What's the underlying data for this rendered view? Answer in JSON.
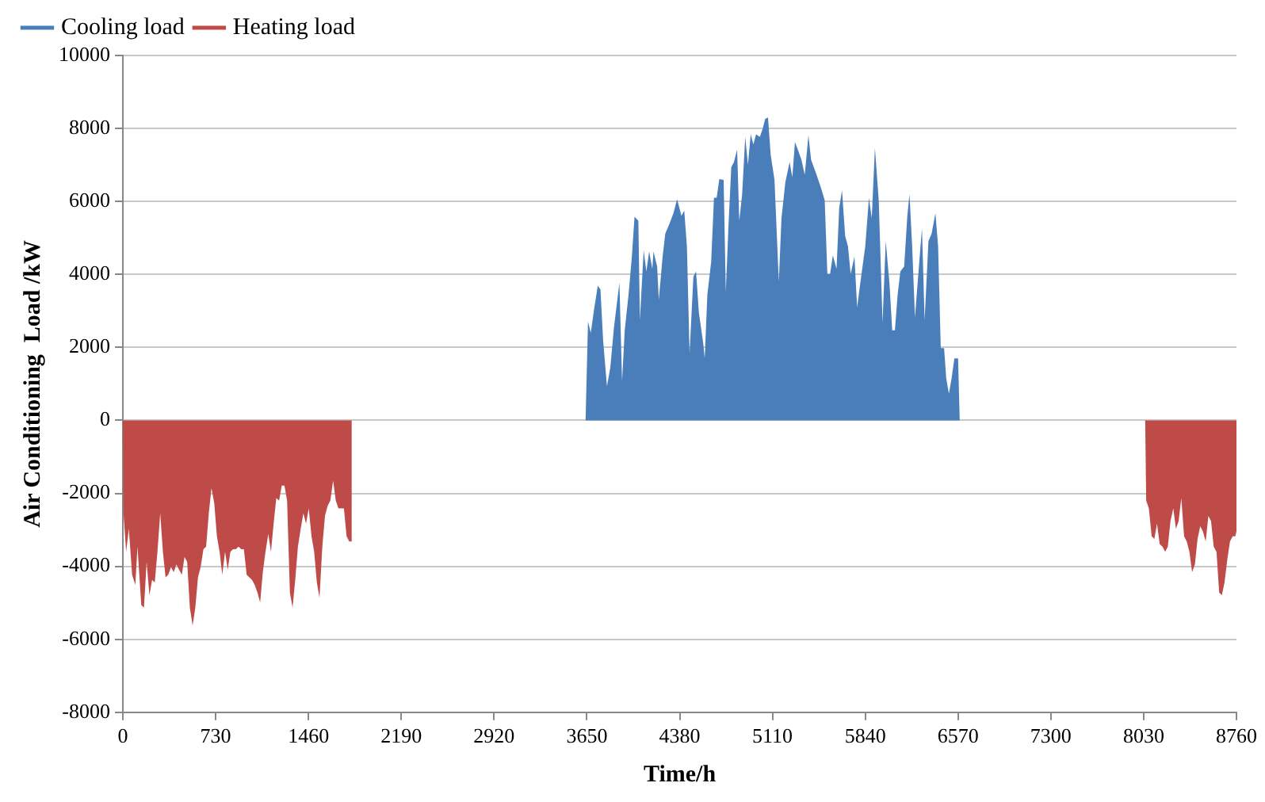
{
  "chart_data": {
    "type": "area",
    "xlabel": "Time/h",
    "ylabel": "Air Conditioning  Load /kW",
    "xlim": [
      0,
      8760
    ],
    "xticks": [
      0,
      730,
      1460,
      2190,
      2920,
      3650,
      4380,
      5110,
      5840,
      6570,
      7300,
      8030,
      8760
    ],
    "ylim": [
      -8000,
      10000
    ],
    "yticks": [
      -8000,
      -6000,
      -4000,
      -2000,
      0,
      2000,
      4000,
      6000,
      8000,
      10000
    ],
    "grid": "y",
    "legend": "top left",
    "marker": "none",
    "series": [
      {
        "name": "Cooling load",
        "color": "#4a7ebb",
        "x": [
          0,
          3640,
          3659,
          3681,
          3706,
          3736,
          3757,
          3778,
          3808,
          3834,
          3863,
          3906,
          3927,
          3948,
          3978,
          4004,
          4025,
          4055,
          4067,
          4097,
          4118,
          4140,
          4165,
          4174,
          4203,
          4216,
          4246,
          4267,
          4301,
          4331,
          4360,
          4394,
          4416,
          4437,
          4458,
          4488,
          4509,
          4531,
          4565,
          4577,
          4598,
          4628,
          4650,
          4671,
          4692,
          4726,
          4743,
          4764,
          4786,
          4807,
          4832,
          4849,
          4871,
          4896,
          4917,
          4939,
          4960,
          4981,
          5011,
          5032,
          5053,
          5075,
          5096,
          5126,
          5160,
          5181,
          5211,
          5245,
          5266,
          5287,
          5317,
          5338,
          5364,
          5393,
          5414,
          5457,
          5491,
          5521,
          5542,
          5563,
          5585,
          5614,
          5635,
          5657,
          5682,
          5704,
          5725,
          5755,
          5776,
          5797,
          5840,
          5869,
          5891,
          5916,
          5946,
          5976,
          6001,
          6031,
          6052,
          6073,
          6095,
          6116,
          6146,
          6171,
          6188,
          6209,
          6231,
          6265,
          6286,
          6307,
          6337,
          6362,
          6392,
          6413,
          6434,
          6460,
          6477,
          6498,
          6519,
          6541,
          6570,
          6583,
          8760
        ],
        "values": [
          0,
          0,
          2710,
          2400,
          3030,
          3690,
          3590,
          2190,
          940,
          1430,
          2540,
          3770,
          1080,
          2470,
          3450,
          4490,
          5580,
          5470,
          2750,
          4660,
          4080,
          4630,
          4150,
          4630,
          4220,
          3310,
          4490,
          5120,
          5400,
          5680,
          6060,
          5610,
          5750,
          4770,
          1840,
          3940,
          4080,
          2960,
          2120,
          1700,
          3450,
          4350,
          6100,
          6100,
          6610,
          6590,
          3520,
          5330,
          6940,
          7080,
          7420,
          5470,
          6170,
          7770,
          7010,
          7840,
          7560,
          7840,
          7770,
          7980,
          8260,
          8300,
          7280,
          6590,
          3800,
          5540,
          6520,
          7080,
          6660,
          7630,
          7350,
          7140,
          6730,
          7810,
          7140,
          6730,
          6380,
          6030,
          4010,
          4010,
          4520,
          4150,
          5820,
          6310,
          5050,
          4770,
          4010,
          4490,
          3100,
          3660,
          4770,
          6100,
          5540,
          7470,
          6030,
          2680,
          4910,
          3730,
          2470,
          2470,
          3450,
          4080,
          4220,
          5610,
          6200,
          4770,
          2820,
          4350,
          5260,
          2750,
          4910,
          5120,
          5680,
          4770,
          1980,
          1980,
          1150,
          730,
          1150,
          1700,
          1700,
          0,
          0
        ]
      },
      {
        "name": "Heating load",
        "color": "#be4b48",
        "x": [
          0,
          5,
          26,
          47,
          73,
          98,
          115,
          145,
          166,
          187,
          209,
          230,
          251,
          272,
          294,
          315,
          336,
          357,
          379,
          400,
          421,
          442,
          464,
          485,
          506,
          527,
          549,
          570,
          591,
          612,
          634,
          655,
          676,
          697,
          719,
          740,
          761,
          782,
          804,
          825,
          846,
          867,
          889,
          910,
          931,
          952,
          974,
          995,
          1016,
          1037,
          1059,
          1080,
          1101,
          1122,
          1144,
          1165,
          1186,
          1207,
          1229,
          1250,
          1271,
          1292,
          1314,
          1335,
          1356,
          1377,
          1399,
          1420,
          1441,
          1462,
          1484,
          1505,
          1526,
          1547,
          1569,
          1590,
          1611,
          1632,
          1654,
          1675,
          1696,
          1717,
          1739,
          1760,
          1781,
          1794,
          1800,
          8042,
          8050,
          8071,
          8093,
          8114,
          8135,
          8156,
          8178,
          8199,
          8220,
          8241,
          8263,
          8284,
          8305,
          8326,
          8348,
          8369,
          8390,
          8411,
          8433,
          8454,
          8475,
          8496,
          8518,
          8539,
          8560,
          8581,
          8603,
          8624,
          8645,
          8666,
          8688,
          8709,
          8730,
          8751,
          8760
        ],
        "values": [
          0,
          -2550,
          -3600,
          -2970,
          -4230,
          -4510,
          -3460,
          -5060,
          -5130,
          -3880,
          -4790,
          -4370,
          -4440,
          -3600,
          -2550,
          -3600,
          -4300,
          -4230,
          -4020,
          -4160,
          -3950,
          -4090,
          -4230,
          -3740,
          -3880,
          -5130,
          -5620,
          -5130,
          -4300,
          -4020,
          -3530,
          -3460,
          -2550,
          -1860,
          -2270,
          -3180,
          -3600,
          -4230,
          -3600,
          -4090,
          -3600,
          -3530,
          -3530,
          -3460,
          -3530,
          -3530,
          -4230,
          -4300,
          -4370,
          -4510,
          -4720,
          -4990,
          -4160,
          -3600,
          -3110,
          -3600,
          -2830,
          -2130,
          -2200,
          -1790,
          -1790,
          -2200,
          -4720,
          -5130,
          -4370,
          -3460,
          -2970,
          -2550,
          -2830,
          -2410,
          -3180,
          -3600,
          -4440,
          -4860,
          -3460,
          -2620,
          -2340,
          -2200,
          -1650,
          -2200,
          -2410,
          -2410,
          -2410,
          -3180,
          -3320,
          -3320,
          0,
          0,
          -2200,
          -2410,
          -3180,
          -3250,
          -2830,
          -3390,
          -3460,
          -3600,
          -3460,
          -2760,
          -2410,
          -2970,
          -2760,
          -2130,
          -3180,
          -3320,
          -3600,
          -4160,
          -3950,
          -3250,
          -2900,
          -3040,
          -3320,
          -2620,
          -2760,
          -3460,
          -3600,
          -4720,
          -4790,
          -4440,
          -3810,
          -3320,
          -3180,
          -3180,
          -3040
        ]
      }
    ]
  }
}
